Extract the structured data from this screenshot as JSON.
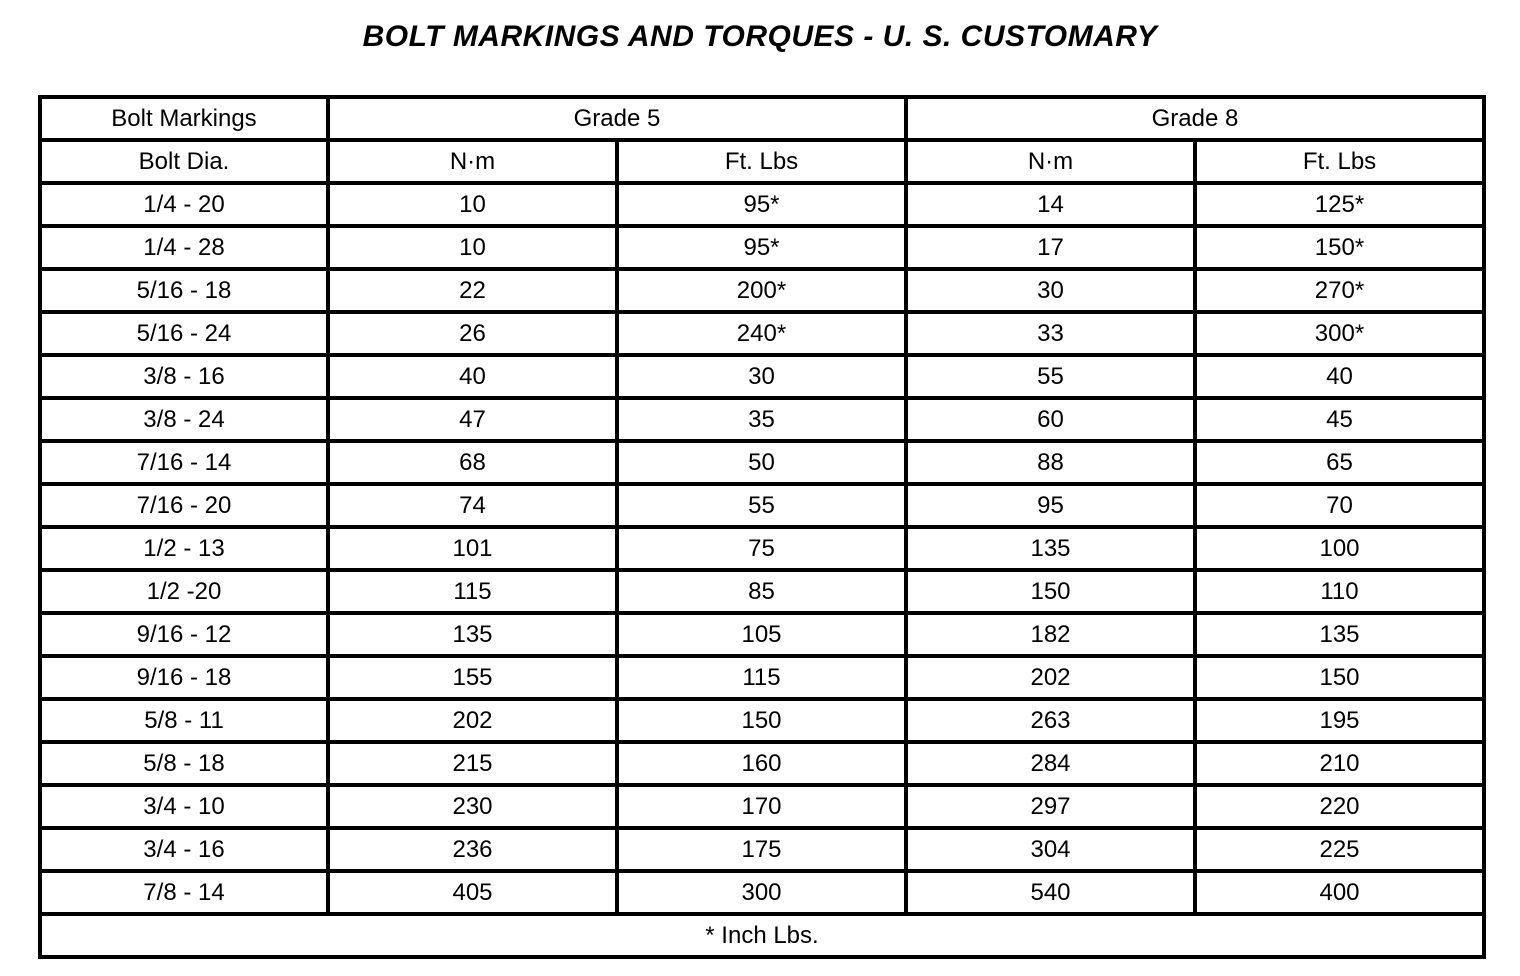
{
  "title": "BOLT MARKINGS AND TORQUES - U. S. CUSTOMARY",
  "colors": {
    "background": "#ffffff",
    "border": "#000000",
    "text": "#000000"
  },
  "table": {
    "group_headers": {
      "bolt_markings": "Bolt Markings",
      "grade5": "Grade 5",
      "grade8": "Grade 8"
    },
    "column_headers": {
      "bolt_dia": "Bolt Dia.",
      "g5_nm": "N·m",
      "g5_ftlbs": "Ft. Lbs",
      "g8_nm": "N·m",
      "g8_ftlbs": "Ft. Lbs"
    },
    "columns_order": [
      "bolt_dia",
      "g5_nm",
      "g5_ftlbs",
      "g8_nm",
      "g8_ftlbs"
    ],
    "rows": [
      {
        "bolt_dia": "1/4 - 20",
        "g5_nm": "10",
        "g5_ftlbs": "95*",
        "g8_nm": "14",
        "g8_ftlbs": "125*"
      },
      {
        "bolt_dia": "1/4 - 28",
        "g5_nm": "10",
        "g5_ftlbs": "95*",
        "g8_nm": "17",
        "g8_ftlbs": "150*"
      },
      {
        "bolt_dia": "5/16 - 18",
        "g5_nm": "22",
        "g5_ftlbs": "200*",
        "g8_nm": "30",
        "g8_ftlbs": "270*"
      },
      {
        "bolt_dia": "5/16 - 24",
        "g5_nm": "26",
        "g5_ftlbs": "240*",
        "g8_nm": "33",
        "g8_ftlbs": "300*"
      },
      {
        "bolt_dia": "3/8 - 16",
        "g5_nm": "40",
        "g5_ftlbs": "30",
        "g8_nm": "55",
        "g8_ftlbs": "40"
      },
      {
        "bolt_dia": "3/8 - 24",
        "g5_nm": "47",
        "g5_ftlbs": "35",
        "g8_nm": "60",
        "g8_ftlbs": "45"
      },
      {
        "bolt_dia": "7/16 - 14",
        "g5_nm": "68",
        "g5_ftlbs": "50",
        "g8_nm": "88",
        "g8_ftlbs": "65"
      },
      {
        "bolt_dia": "7/16 - 20",
        "g5_nm": "74",
        "g5_ftlbs": "55",
        "g8_nm": "95",
        "g8_ftlbs": "70"
      },
      {
        "bolt_dia": "1/2 - 13",
        "g5_nm": "101",
        "g5_ftlbs": "75",
        "g8_nm": "135",
        "g8_ftlbs": "100"
      },
      {
        "bolt_dia": "1/2 -20",
        "g5_nm": "115",
        "g5_ftlbs": "85",
        "g8_nm": "150",
        "g8_ftlbs": "110"
      },
      {
        "bolt_dia": "9/16 - 12",
        "g5_nm": "135",
        "g5_ftlbs": "105",
        "g8_nm": "182",
        "g8_ftlbs": "135"
      },
      {
        "bolt_dia": "9/16 - 18",
        "g5_nm": "155",
        "g5_ftlbs": "115",
        "g8_nm": "202",
        "g8_ftlbs": "150"
      },
      {
        "bolt_dia": "5/8 - 11",
        "g5_nm": "202",
        "g5_ftlbs": "150",
        "g8_nm": "263",
        "g8_ftlbs": "195"
      },
      {
        "bolt_dia": "5/8 - 18",
        "g5_nm": "215",
        "g5_ftlbs": "160",
        "g8_nm": "284",
        "g8_ftlbs": "210"
      },
      {
        "bolt_dia": "3/4 - 10",
        "g5_nm": "230",
        "g5_ftlbs": "170",
        "g8_nm": "297",
        "g8_ftlbs": "220"
      },
      {
        "bolt_dia": "3/4 - 16",
        "g5_nm": "236",
        "g5_ftlbs": "175",
        "g8_nm": "304",
        "g8_ftlbs": "225"
      },
      {
        "bolt_dia": "7/8 - 14",
        "g5_nm": "405",
        "g5_ftlbs": "300",
        "g8_nm": "540",
        "g8_ftlbs": "400"
      }
    ],
    "footnote": "* Inch Lbs."
  }
}
